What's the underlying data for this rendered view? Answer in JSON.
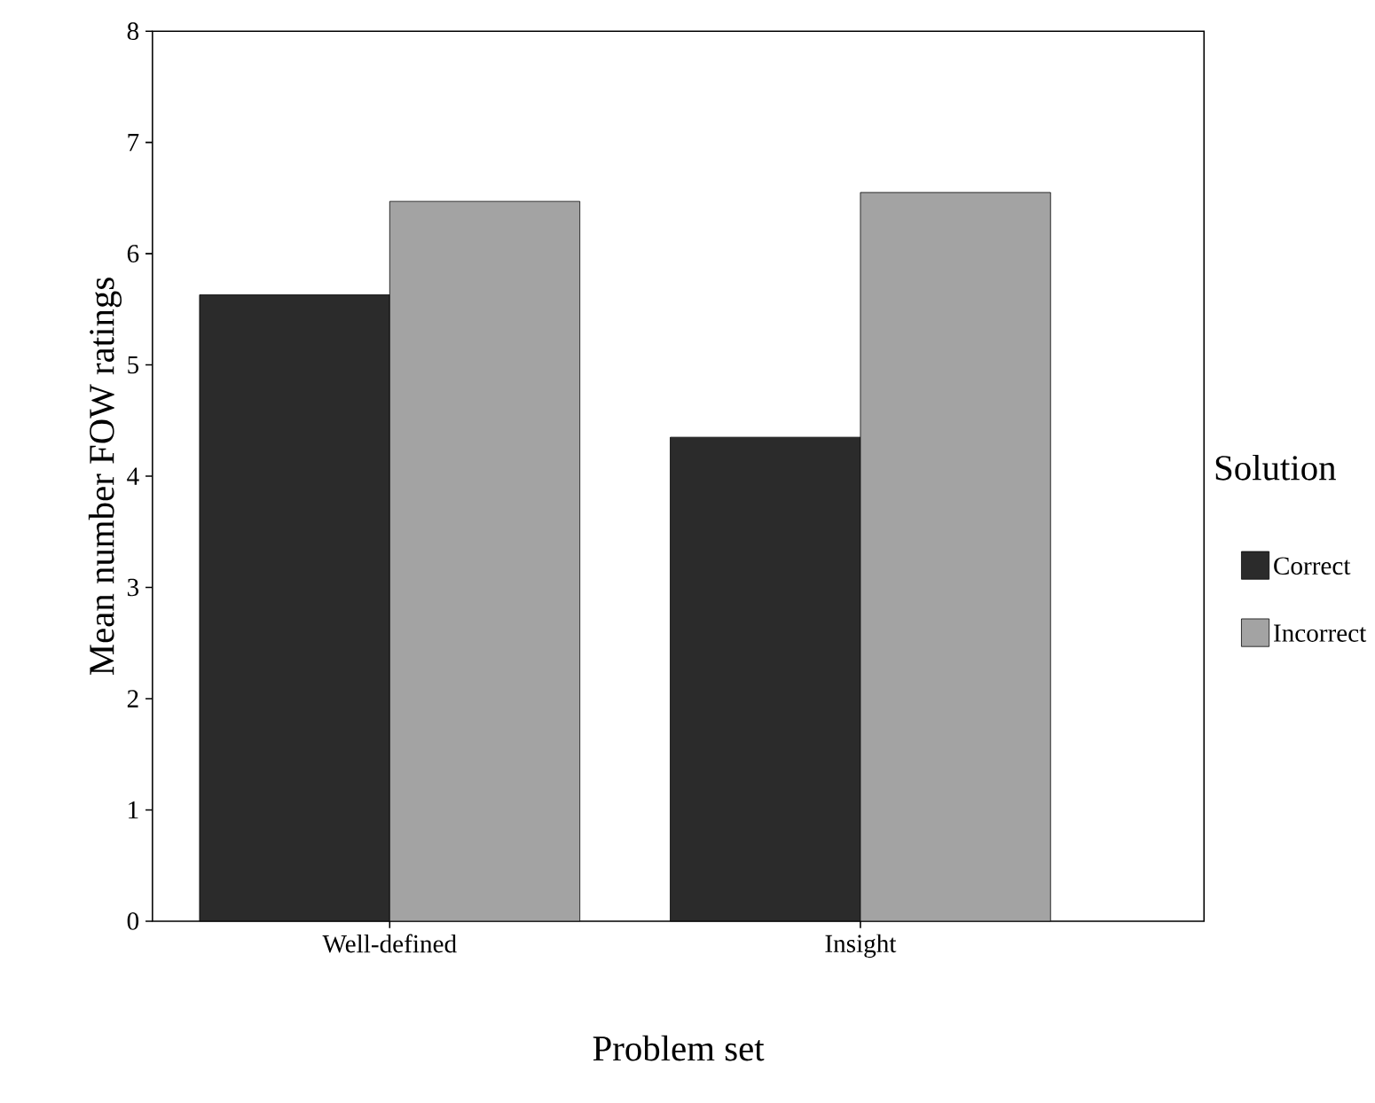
{
  "chart_data": {
    "type": "bar",
    "xlabel": "Problem set",
    "ylabel": "Mean number FOW ratings",
    "legend_title": "Solution",
    "categories": [
      "Well-defined",
      "Insight"
    ],
    "series": [
      {
        "name": "Correct",
        "color": "#2b2b2b",
        "values": [
          5.63,
          4.35
        ]
      },
      {
        "name": "Incorrect",
        "color": "#a3a3a3",
        "values": [
          6.47,
          6.55
        ]
      }
    ],
    "ylim": [
      0,
      8
    ],
    "yticks": [
      0,
      1,
      2,
      3,
      4,
      5,
      6,
      7,
      8
    ],
    "grid": false,
    "legend": "right"
  }
}
